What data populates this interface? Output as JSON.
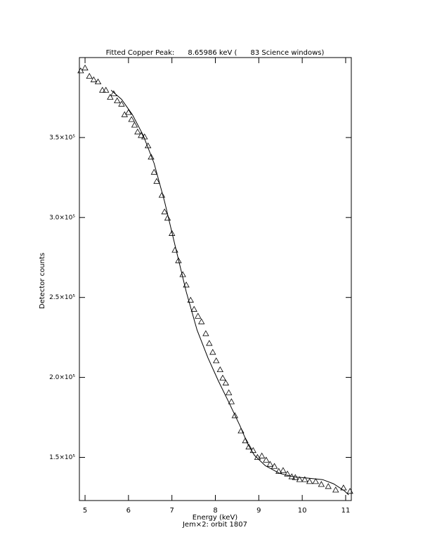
{
  "chart_data": {
    "type": "scatter",
    "title": "Fitted Copper Peak:      8.65986 keV (      83 Science windows)",
    "x_label": "Energy (keV)",
    "subtitle": "Jem×2: orbit 1807",
    "y_label": "Detector counts",
    "xlim": [
      4.87,
      11.13
    ],
    "ylim": [
      123000,
      400000
    ],
    "xticks": [
      5,
      6,
      7,
      8,
      9,
      10,
      11
    ],
    "yticks": [
      {
        "value": 150000,
        "label": "1.5×10⁵"
      },
      {
        "value": 200000,
        "label": "2.0×10⁵"
      },
      {
        "value": 250000,
        "label": "2.5×10⁵"
      },
      {
        "value": 300000,
        "label": "3.0×10⁵"
      },
      {
        "value": 350000,
        "label": "3.5×10⁵"
      }
    ],
    "series": [
      {
        "color": "#000000",
        "marker": "triangle",
        "x": [
          4.9,
          5.0,
          5.1,
          5.2,
          5.3,
          5.4,
          5.48,
          5.58,
          5.66,
          5.74,
          5.84,
          5.91,
          6.0,
          6.07,
          6.14,
          6.21,
          6.29,
          6.37,
          6.45,
          6.52,
          6.59,
          6.65,
          6.77,
          6.83,
          6.9,
          7.0,
          7.07,
          7.15,
          7.25,
          7.33,
          7.43,
          7.51,
          7.6,
          7.68,
          7.78,
          7.86,
          7.94,
          8.02,
          8.11,
          8.17,
          8.24,
          8.31,
          8.37,
          8.45,
          8.59,
          8.69,
          8.77,
          8.87,
          8.97,
          9.07,
          9.17,
          9.26,
          9.36,
          9.46,
          9.56,
          9.66,
          9.76,
          9.84,
          9.94,
          10.06,
          10.17,
          10.31,
          10.44,
          10.6,
          10.77,
          10.95,
          11.1
        ],
        "values": [
          391700,
          393500,
          388300,
          386100,
          384800,
          379600,
          379600,
          375200,
          377400,
          373000,
          370900,
          364300,
          365700,
          361300,
          357800,
          353500,
          351300,
          350400,
          344800,
          337800,
          328300,
          322600,
          313900,
          303500,
          299600,
          290000,
          279600,
          273000,
          264300,
          257800,
          248300,
          242600,
          238300,
          234800,
          227400,
          221300,
          215700,
          210400,
          204800,
          199600,
          196500,
          190400,
          184800,
          176100,
          166500,
          160400,
          156500,
          154300,
          150000,
          150900,
          148300,
          145700,
          144400,
          141300,
          141800,
          139600,
          137900,
          137400,
          136100,
          136100,
          134900,
          134900,
          133100,
          131800,
          129600,
          130900,
          128800
        ]
      },
      {
        "color": "#000000",
        "marker": "line",
        "x": [
          5.6,
          5.84,
          6.09,
          6.34,
          6.59,
          6.83,
          7.08,
          7.33,
          7.58,
          7.83,
          8.07,
          8.32,
          8.57,
          8.74,
          8.9,
          9.15,
          9.48,
          9.81,
          10.14,
          10.47,
          10.72,
          10.97,
          11.07
        ],
        "values": [
          379600,
          373900,
          364300,
          351300,
          333900,
          310000,
          281700,
          253500,
          229600,
          212200,
          197800,
          183900,
          169600,
          158700,
          151300,
          144800,
          140000,
          137800,
          137000,
          136100,
          133500,
          129100,
          126500
        ]
      }
    ]
  }
}
